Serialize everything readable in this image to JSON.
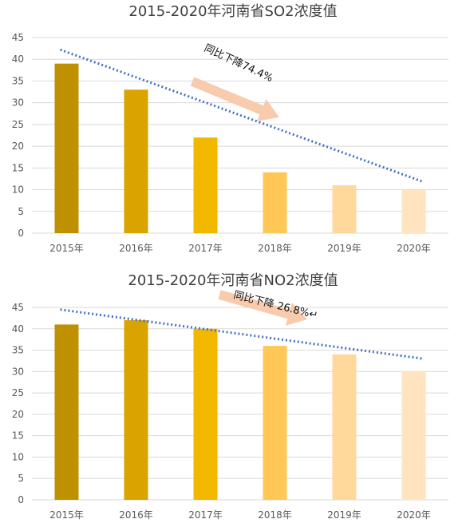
{
  "colors": {
    "bars": [
      "#bf9000",
      "#d9a300",
      "#f2b800",
      "#ffc856",
      "#ffd99c",
      "#ffe4bf"
    ],
    "trend": "#4472c4",
    "arrow": "#f8cbad",
    "grid": "#d9d9d9"
  },
  "chart_data": [
    {
      "type": "bar",
      "title": "2015-2020年河南省SO2浓度值",
      "categories": [
        "2015年",
        "2016年",
        "2017年",
        "2018年",
        "2019年",
        "2020年"
      ],
      "values": [
        39,
        33,
        22,
        14,
        11,
        10
      ],
      "ylim": [
        0,
        45
      ],
      "yticks": [
        0,
        5,
        10,
        15,
        20,
        25,
        30,
        35,
        40,
        45
      ],
      "grid": true,
      "trendline": {
        "style": "dotted",
        "start": 42.2,
        "end": 11.8
      },
      "annotation": {
        "text": "同比下降74.4%"
      }
    },
    {
      "type": "bar",
      "title": "2015-2020年河南省NO2浓度值",
      "categories": [
        "2015年",
        "2016年",
        "2017年",
        "2018年",
        "2019年",
        "2020年"
      ],
      "values": [
        41,
        42,
        40,
        36,
        34,
        30
      ],
      "ylim": [
        0,
        45
      ],
      "yticks": [
        0,
        5,
        10,
        15,
        20,
        25,
        30,
        35,
        40,
        45
      ],
      "grid": true,
      "trendline": {
        "style": "dotted",
        "start": 44.5,
        "end": 33
      },
      "annotation": {
        "text": "同比下降 26.8%↵"
      }
    }
  ]
}
